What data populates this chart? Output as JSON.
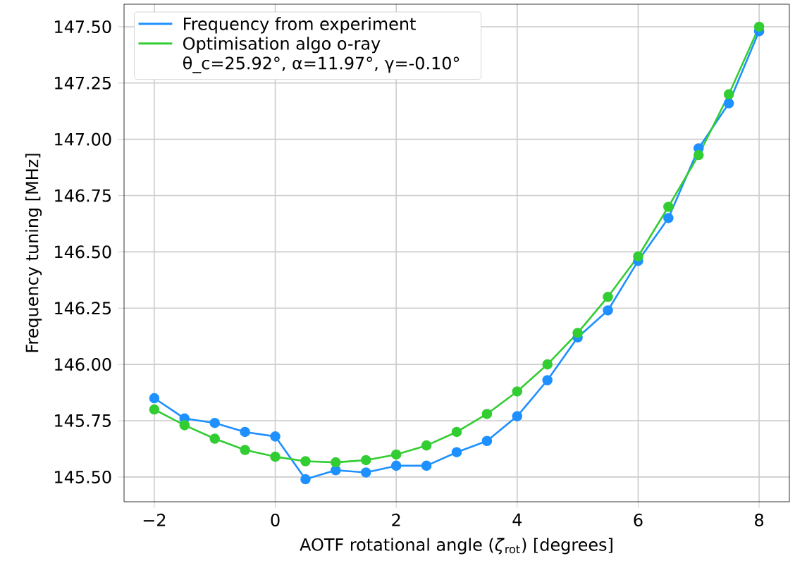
{
  "chart_data": {
    "type": "line",
    "xlabel": "AOTF rotational angle (*ζ*$_{rot}$) [degrees]",
    "ylabel": "Frequency tuning [MHz]",
    "x": [
      -2,
      -1.5,
      -1,
      -0.5,
      0,
      0.5,
      1,
      1.5,
      2,
      2.5,
      3,
      3.5,
      4,
      4.5,
      5,
      5.5,
      6,
      6.5,
      7,
      7.5,
      8
    ],
    "series": [
      {
        "name": "Frequency from experiment",
        "color": "#1e90ff",
        "values": [
          145.85,
          145.76,
          145.74,
          145.7,
          145.68,
          145.49,
          145.53,
          145.52,
          145.55,
          145.55,
          145.61,
          145.66,
          145.77,
          145.93,
          146.12,
          146.24,
          146.46,
          146.65,
          146.96,
          147.16,
          147.48
        ]
      },
      {
        "name": "Optimisation algo o-ray θ_c=25.92°, α=11.97°, γ=-0.10°",
        "color": "#32cd32",
        "values": [
          145.8,
          145.73,
          145.67,
          145.62,
          145.59,
          145.57,
          145.565,
          145.575,
          145.6,
          145.64,
          145.7,
          145.78,
          145.88,
          146.0,
          146.14,
          146.3,
          146.48,
          146.7,
          146.93,
          147.2,
          147.5
        ]
      }
    ],
    "xlim": [
      -2.5,
      8.5
    ],
    "ylim": [
      145.39,
      147.6
    ],
    "xticks": [
      {
        "value": -2,
        "label": "−2"
      },
      0,
      2,
      4,
      6,
      8
    ],
    "yticks": [
      {
        "value": 145.5,
        "label": "145.50"
      },
      {
        "value": 145.75,
        "label": "145.75"
      },
      {
        "value": 146,
        "label": "146.00"
      },
      {
        "value": 146.25,
        "label": "146.25"
      },
      {
        "value": 146.5,
        "label": "146.50"
      },
      {
        "value": 146.75,
        "label": "146.75"
      },
      {
        "value": 147,
        "label": "147.00"
      },
      {
        "value": 147.25,
        "label": "147.25"
      },
      {
        "value": 147.5,
        "label": "147.50"
      }
    ],
    "grid": true,
    "legend": "top left",
    "marker": "circle",
    "line_style": "solid"
  }
}
